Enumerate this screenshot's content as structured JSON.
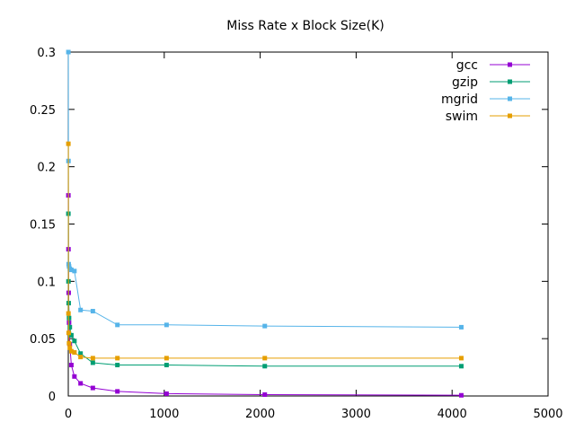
{
  "chart_data": {
    "type": "line",
    "title": "Miss Rate x Block Size(K)",
    "xlabel": "",
    "ylabel": "",
    "xlim": [
      0,
      5000
    ],
    "ylim": [
      0,
      0.3
    ],
    "xticks": [
      0,
      1000,
      2000,
      3000,
      4000,
      5000
    ],
    "yticks": [
      0,
      0.05,
      0.1,
      0.15,
      0.2,
      0.25,
      0.3
    ],
    "xtick_labels": [
      "0",
      "1000",
      "2000",
      "3000",
      "4000",
      "5000"
    ],
    "ytick_labels": [
      "0",
      "0.05",
      "0.1",
      "0.15",
      "0.2",
      "0.25",
      "0.3"
    ],
    "grid": false,
    "legend_position": "top-right",
    "series": [
      {
        "name": "gcc",
        "color": "#9400d3",
        "x": [
          1,
          2,
          4,
          8,
          16,
          32,
          64,
          128,
          256,
          512,
          1024,
          2048,
          4096
        ],
        "y": [
          0.175,
          0.128,
          0.09,
          0.064,
          0.045,
          0.027,
          0.017,
          0.011,
          0.007,
          0.004,
          0.002,
          0.0012,
          0.0006
        ]
      },
      {
        "name": "gzip",
        "color": "#009e73",
        "x": [
          1,
          2,
          4,
          8,
          16,
          32,
          64,
          128,
          256,
          512,
          1024,
          2048,
          4096
        ],
        "y": [
          0.159,
          0.1,
          0.081,
          0.068,
          0.06,
          0.053,
          0.048,
          0.037,
          0.029,
          0.027,
          0.027,
          0.026,
          0.026
        ]
      },
      {
        "name": "mgrid",
        "color": "#56b4e9",
        "x": [
          1,
          2,
          4,
          8,
          16,
          32,
          64,
          128,
          256,
          512,
          1024,
          2048,
          4096
        ],
        "y": [
          0.3,
          0.205,
          0.115,
          0.113,
          0.111,
          0.11,
          0.109,
          0.075,
          0.074,
          0.062,
          0.062,
          0.061,
          0.06
        ]
      },
      {
        "name": "swim",
        "color": "#e69f00",
        "x": [
          1,
          2,
          4,
          8,
          16,
          32,
          64,
          128,
          256,
          512,
          1024,
          2048,
          4096
        ],
        "y": [
          0.22,
          0.072,
          0.055,
          0.046,
          0.042,
          0.039,
          0.038,
          0.034,
          0.033,
          0.033,
          0.033,
          0.033,
          0.033
        ]
      }
    ]
  }
}
